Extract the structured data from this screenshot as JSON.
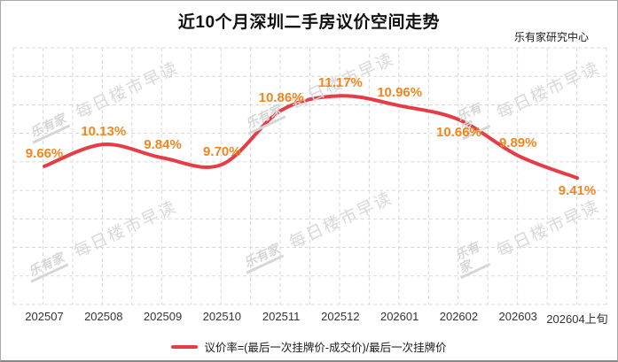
{
  "header": {
    "title": "近10个月深圳二手房议价空间走势",
    "source": "乐有家研究中心"
  },
  "watermark": {
    "logo": "乐有家",
    "text": "每日楼市早读"
  },
  "legend": {
    "label": "议价率=(最后一次挂牌价-成交价)/最后一次挂牌价"
  },
  "chart_data": {
    "type": "line",
    "title": "近10个月深圳二手房议价空间走势",
    "categories": [
      "202507",
      "202508",
      "202509",
      "202510",
      "202511",
      "202512",
      "202601",
      "202602",
      "202603",
      "202604上旬"
    ],
    "series": [
      {
        "name": "议价率",
        "values": [
          9.66,
          10.13,
          9.84,
          9.7,
          10.86,
          11.17,
          10.96,
          10.66,
          9.89,
          9.41
        ]
      }
    ],
    "point_labels": [
      "9.66%",
      "10.13%",
      "9.84%",
      "9.70%",
      "10.86%",
      "11.17%",
      "10.96%",
      "10.66%",
      "9.89%",
      "9.41%"
    ],
    "label_side": [
      "above",
      "above",
      "above",
      "above",
      "above",
      "above",
      "above",
      "below",
      "above",
      "below"
    ],
    "unit": "%",
    "xlabel": "",
    "ylabel": "",
    "ylim": [
      6.7,
      12.2
    ],
    "grid": "dashed",
    "legend_position": "bottom",
    "colors": {
      "line": "#e63c46",
      "point_label": "#f0861e",
      "grid": "#d9d9d9",
      "watermark": "#d9d9d9",
      "axis_text": "#333333",
      "title": "#111111"
    }
  }
}
